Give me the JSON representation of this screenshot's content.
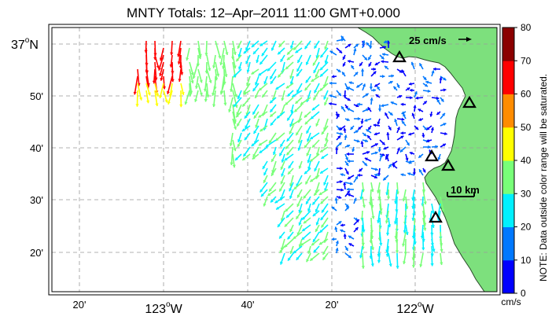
{
  "map": {
    "title": "MNTY Totals: 12–Apr–2011 11:00 GMT+0.000",
    "lat_labels": [
      {
        "deg": "37",
        "min": null,
        "hemi": "N"
      },
      {
        "deg": null,
        "min": "50'",
        "hemi": null
      },
      {
        "deg": null,
        "min": "40'",
        "hemi": null
      },
      {
        "deg": null,
        "min": "30'",
        "hemi": null
      },
      {
        "deg": null,
        "min": "20'",
        "hemi": null
      }
    ],
    "lon_labels": [
      {
        "text": "20'"
      },
      {
        "deg": "123",
        "hemi": "W"
      },
      {
        "text": "40'"
      },
      {
        "text": "20'"
      },
      {
        "deg": "122",
        "hemi": "W"
      }
    ],
    "scale_vector_label": "25 cm/s",
    "scale_bar_label": "10 km",
    "land_color": "#7de07d",
    "ocean_color": "#ffffff",
    "site_marker": "triangle-icon"
  },
  "colorbar": {
    "ticks": [
      "0",
      "10",
      "20",
      "30",
      "40",
      "50",
      "60",
      "70",
      "80"
    ],
    "colors": [
      "#0000ff",
      "#0078ff",
      "#00f0ff",
      "#78ff78",
      "#ffff00",
      "#ff8c00",
      "#ff0000",
      "#8b0000"
    ],
    "unit": "cm/s",
    "note": "NOTE: Data outside color range will be saturated."
  }
}
